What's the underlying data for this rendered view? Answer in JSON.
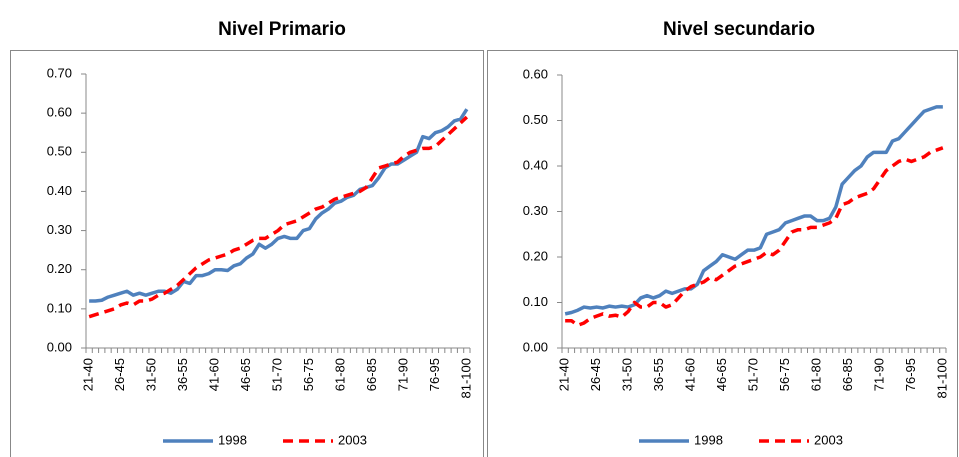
{
  "chart_data": [
    {
      "type": "line",
      "title": "Nivel Primario",
      "categories": [
        "21-40",
        null,
        null,
        null,
        null,
        "26-45",
        null,
        null,
        null,
        null,
        "31-50",
        null,
        null,
        null,
        null,
        "36-55",
        null,
        null,
        null,
        null,
        "41-60",
        null,
        null,
        null,
        null,
        "46-65",
        null,
        null,
        null,
        null,
        "51-70",
        null,
        null,
        null,
        null,
        "56-75",
        null,
        null,
        null,
        null,
        "61-80",
        null,
        null,
        null,
        null,
        "66-85",
        null,
        null,
        null,
        null,
        "71-90",
        null,
        null,
        null,
        null,
        "76-95",
        null,
        null,
        null,
        null,
        "81-100"
      ],
      "series": [
        {
          "name": "1998",
          "color": "#4f81bd",
          "line_style": "solid",
          "values": [
            0.12,
            0.12,
            0.122,
            0.13,
            0.135,
            0.14,
            0.145,
            0.135,
            0.14,
            0.135,
            0.14,
            0.145,
            0.145,
            0.14,
            0.15,
            0.17,
            0.165,
            0.185,
            0.185,
            0.19,
            0.2,
            0.2,
            0.198,
            0.21,
            0.215,
            0.23,
            0.24,
            0.265,
            0.255,
            0.265,
            0.28,
            0.285,
            0.28,
            0.28,
            0.3,
            0.305,
            0.33,
            0.345,
            0.355,
            0.37,
            0.375,
            0.385,
            0.39,
            0.405,
            0.41,
            0.415,
            0.435,
            0.46,
            0.47,
            0.47,
            0.48,
            0.49,
            0.5,
            0.54,
            0.535,
            0.55,
            0.555,
            0.565,
            0.58,
            0.585,
            0.61
          ]
        },
        {
          "name": "2003",
          "color": "#ff0000",
          "line_style": "dashed",
          "values": [
            0.08,
            0.085,
            0.09,
            0.095,
            0.1,
            0.11,
            0.115,
            0.11,
            0.12,
            0.12,
            0.125,
            0.135,
            0.14,
            0.15,
            0.16,
            0.175,
            0.19,
            0.205,
            0.215,
            0.225,
            0.23,
            0.235,
            0.24,
            0.25,
            0.255,
            0.265,
            0.275,
            0.28,
            0.28,
            0.29,
            0.3,
            0.315,
            0.32,
            0.325,
            0.335,
            0.345,
            0.355,
            0.36,
            0.37,
            0.38,
            0.385,
            0.39,
            0.395,
            0.4,
            0.41,
            0.435,
            0.46,
            0.465,
            0.47,
            0.475,
            0.49,
            0.5,
            0.505,
            0.51,
            0.51,
            0.515,
            0.53,
            0.545,
            0.56,
            0.575,
            0.59
          ]
        }
      ],
      "ylim": [
        0,
        0.7
      ],
      "yticks": [
        {
          "value": 0,
          "label": "0.00"
        },
        {
          "value": 0.1,
          "label": "0.10"
        },
        {
          "value": 0.2,
          "label": "0.20"
        },
        {
          "value": 0.3,
          "label": "0.30"
        },
        {
          "value": 0.4,
          "label": "0.40"
        },
        {
          "value": 0.5,
          "label": "0.50"
        },
        {
          "value": 0.6,
          "label": "0.60"
        },
        {
          "value": 0.7,
          "label": "0.70"
        }
      ],
      "legend": "bottom"
    },
    {
      "type": "line",
      "title": "Nivel secundario",
      "categories": [
        "21-40",
        null,
        null,
        null,
        null,
        "26-45",
        null,
        null,
        null,
        null,
        "31-50",
        null,
        null,
        null,
        null,
        "36-55",
        null,
        null,
        null,
        null,
        "41-60",
        null,
        null,
        null,
        null,
        "46-65",
        null,
        null,
        null,
        null,
        "51-70",
        null,
        null,
        null,
        null,
        "56-75",
        null,
        null,
        null,
        null,
        "61-80",
        null,
        null,
        null,
        null,
        "66-85",
        null,
        null,
        null,
        null,
        "71-90",
        null,
        null,
        null,
        null,
        "76-95",
        null,
        null,
        null,
        null,
        "81-100"
      ],
      "series": [
        {
          "name": "1998",
          "color": "#4f81bd",
          "line_style": "solid",
          "values": [
            0.075,
            0.078,
            0.083,
            0.09,
            0.088,
            0.09,
            0.088,
            0.092,
            0.09,
            0.092,
            0.09,
            0.095,
            0.11,
            0.115,
            0.11,
            0.115,
            0.125,
            0.12,
            0.125,
            0.13,
            0.13,
            0.14,
            0.17,
            0.18,
            0.19,
            0.205,
            0.2,
            0.195,
            0.205,
            0.215,
            0.215,
            0.22,
            0.25,
            0.255,
            0.26,
            0.275,
            0.28,
            0.285,
            0.29,
            0.29,
            0.28,
            0.28,
            0.285,
            0.31,
            0.36,
            0.375,
            0.39,
            0.4,
            0.42,
            0.43,
            0.43,
            0.43,
            0.455,
            0.46,
            0.475,
            0.49,
            0.505,
            0.52,
            0.525,
            0.53,
            0.53
          ]
        },
        {
          "name": "2003",
          "color": "#ff0000",
          "line_style": "dashed",
          "values": [
            0.06,
            0.06,
            0.05,
            0.055,
            0.065,
            0.07,
            0.075,
            0.07,
            0.072,
            0.068,
            0.08,
            0.1,
            0.09,
            0.09,
            0.1,
            0.1,
            0.09,
            0.095,
            0.11,
            0.125,
            0.135,
            0.14,
            0.145,
            0.155,
            0.15,
            0.16,
            0.17,
            0.18,
            0.185,
            0.19,
            0.195,
            0.2,
            0.21,
            0.205,
            0.215,
            0.235,
            0.255,
            0.26,
            0.26,
            0.265,
            0.265,
            0.27,
            0.275,
            0.285,
            0.315,
            0.32,
            0.33,
            0.335,
            0.34,
            0.35,
            0.37,
            0.39,
            0.4,
            0.41,
            0.415,
            0.41,
            0.415,
            0.42,
            0.43,
            0.435,
            0.44
          ]
        }
      ],
      "ylim": [
        0,
        0.6
      ],
      "yticks": [
        {
          "value": 0,
          "label": "0.00"
        },
        {
          "value": 0.1,
          "label": "0.10"
        },
        {
          "value": 0.2,
          "label": "0.20"
        },
        {
          "value": 0.3,
          "label": "0.30"
        },
        {
          "value": 0.4,
          "label": "0.40"
        },
        {
          "value": 0.5,
          "label": "0.50"
        },
        {
          "value": 0.6,
          "label": "0.60"
        }
      ],
      "legend": "bottom"
    }
  ]
}
